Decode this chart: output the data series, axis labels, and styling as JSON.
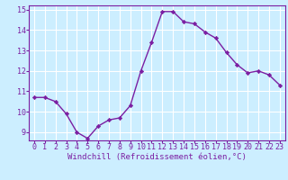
{
  "x": [
    0,
    1,
    2,
    3,
    4,
    5,
    6,
    7,
    8,
    9,
    10,
    11,
    12,
    13,
    14,
    15,
    16,
    17,
    18,
    19,
    20,
    21,
    22,
    23
  ],
  "y": [
    10.7,
    10.7,
    10.5,
    9.9,
    9.0,
    8.7,
    9.3,
    9.6,
    9.7,
    10.3,
    12.0,
    13.4,
    14.9,
    14.9,
    14.4,
    14.3,
    13.9,
    13.6,
    12.9,
    12.3,
    11.9,
    12.0,
    11.8,
    11.3
  ],
  "line_color": "#7b1fa2",
  "marker": "D",
  "markersize": 2.2,
  "linewidth": 1.0,
  "xlabel": "Windchill (Refroidissement éolien,°C)",
  "xlabel_fontsize": 6.5,
  "ylim": [
    8.6,
    15.2
  ],
  "xlim": [
    -0.5,
    23.5
  ],
  "yticks": [
    9,
    10,
    11,
    12,
    13,
    14,
    15
  ],
  "xticks": [
    0,
    1,
    2,
    3,
    4,
    5,
    6,
    7,
    8,
    9,
    10,
    11,
    12,
    13,
    14,
    15,
    16,
    17,
    18,
    19,
    20,
    21,
    22,
    23
  ],
  "bg_color": "#cceeff",
  "grid_color": "#ffffff",
  "tick_fontsize": 6.0,
  "spine_color": "#7b1fa2"
}
